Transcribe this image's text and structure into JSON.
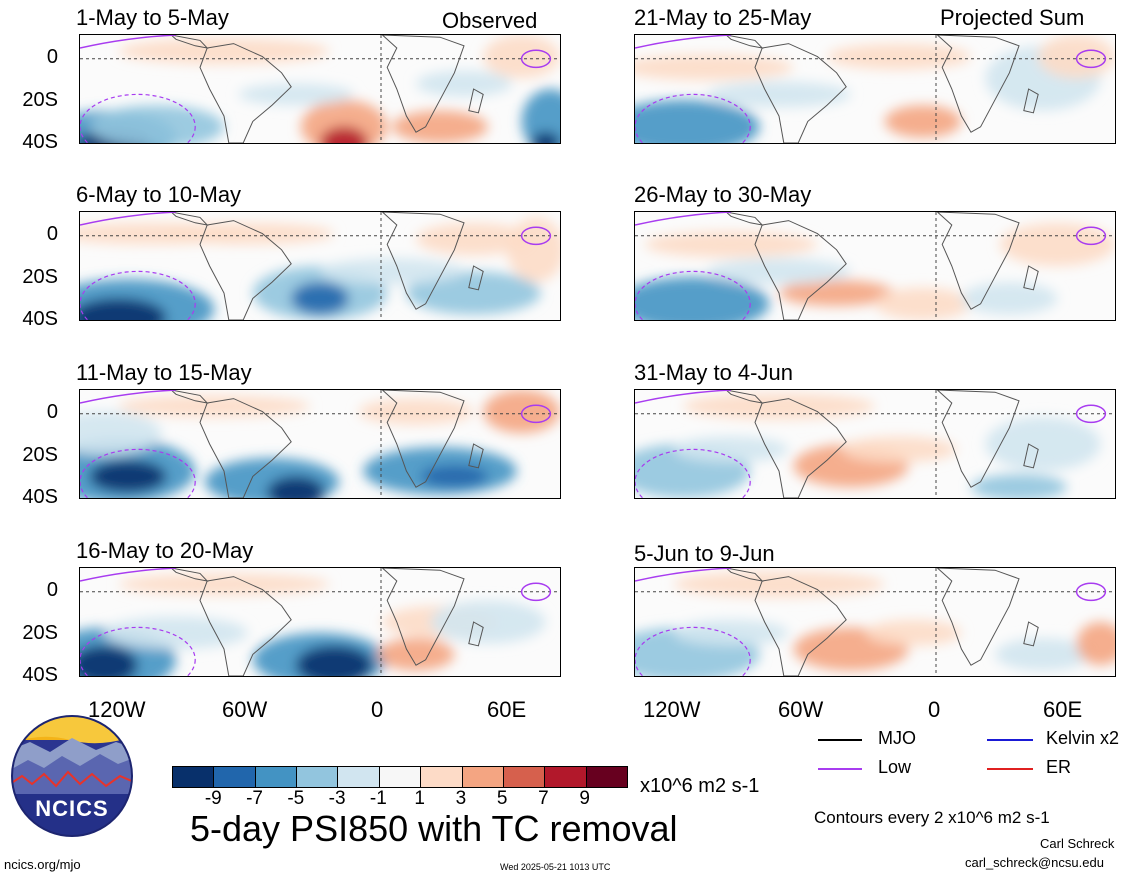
{
  "left_tag": "Observed",
  "right_tag": "Projected Sum",
  "panels": [
    {
      "title": "1-May to 5-May"
    },
    {
      "title": "6-May to 10-May"
    },
    {
      "title": "11-May to 15-May"
    },
    {
      "title": "16-May to 20-May"
    },
    {
      "title": "21-May to 25-May"
    },
    {
      "title": "26-May to 30-May"
    },
    {
      "title": "31-May to 4-Jun"
    },
    {
      "title": "5-Jun to 9-Jun"
    }
  ],
  "y_ticks": [
    "0",
    "20S",
    "40S"
  ],
  "x_ticks": [
    "120W",
    "60W",
    "0",
    "60E"
  ],
  "legend": {
    "mjo": "MJO",
    "kelvin": "Kelvin x2",
    "low": "Low",
    "er": "ER",
    "colors": {
      "mjo": "#000000",
      "kelvin": "#1a1ad6",
      "low": "#a83cf0",
      "er": "#e02020"
    }
  },
  "colorbar": {
    "colors": [
      "#08306b",
      "#2166ac",
      "#4393c3",
      "#92c5de",
      "#d1e5f0",
      "#f7f7f7",
      "#fddbc7",
      "#f4a582",
      "#d6604d",
      "#b2182b",
      "#67001f"
    ],
    "labels": [
      "-9",
      "-7",
      "-5",
      "-3",
      "-1",
      "1",
      "3",
      "5",
      "7",
      "9"
    ],
    "units": "x10^6 m2 s-1"
  },
  "main_title": "5-day PSI850 with TC removal",
  "contours_note": "Contours every 2 x10^6 m2 s-1",
  "author": "Carl Schreck",
  "email": "carl_schreck@ncsu.edu",
  "site": "ncics.org/mjo",
  "timestamp": "Wed 2025-05-21 1013 UTC",
  "logo_text": "NCICS"
}
